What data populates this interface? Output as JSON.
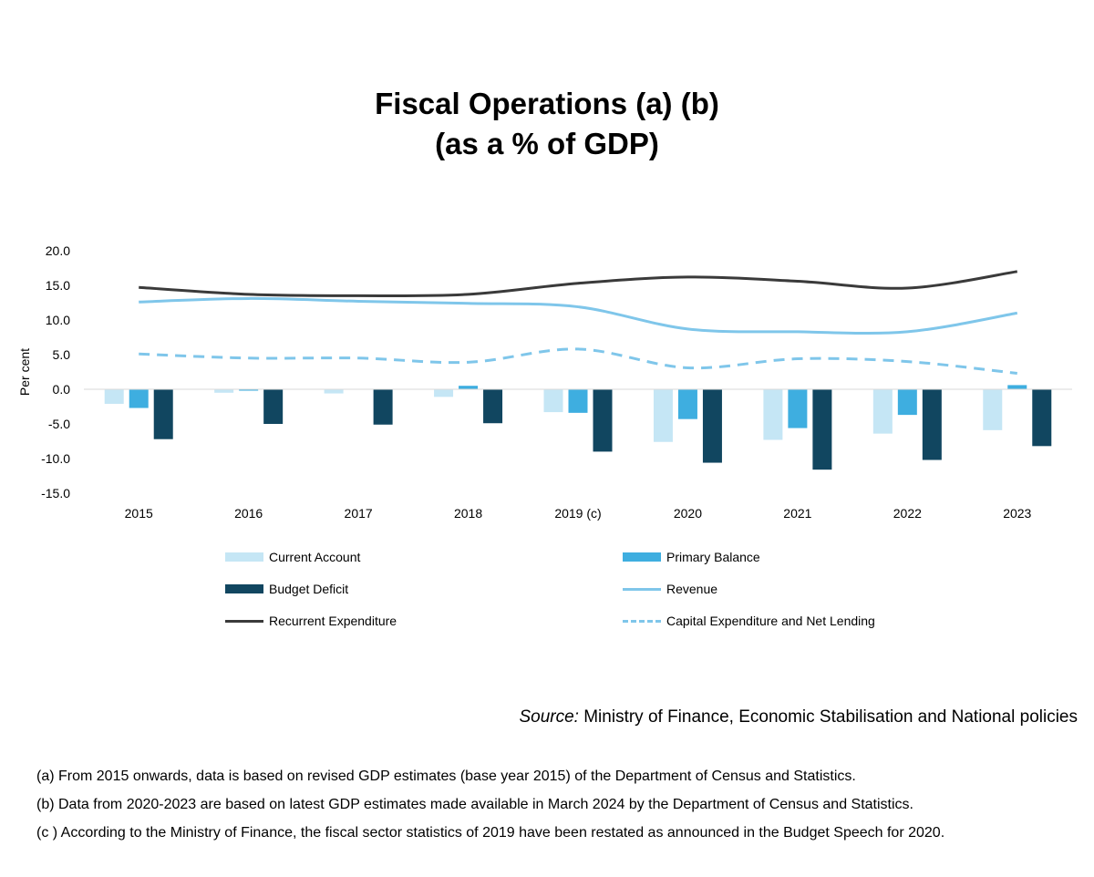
{
  "title_line1": "Fiscal Operations (a) (b)",
  "title_line2": "(as a % of GDP)",
  "chart_data": {
    "type": "bar",
    "categories": [
      "2015",
      "2016",
      "2017",
      "2018",
      "2019 (c)",
      "2020",
      "2021",
      "2022",
      "2023"
    ],
    "ylabel": "Per cent",
    "ylim": [
      -15,
      20
    ],
    "yticks": [
      "20.0",
      "15.0",
      "10.0",
      "5.0",
      "0.0",
      "-5.0",
      "-10.0",
      "-15.0"
    ],
    "grid": false,
    "legend_position": "bottom",
    "bar_series": [
      {
        "name": "Current Account",
        "color": "#c5e6f5",
        "values": [
          -2.1,
          -0.5,
          -0.6,
          -1.1,
          -3.3,
          -7.6,
          -7.3,
          -6.4,
          -5.9
        ]
      },
      {
        "name": "Primary Balance",
        "color": "#3eaee0",
        "values": [
          -2.7,
          -0.2,
          0.0,
          0.5,
          -3.4,
          -4.3,
          -5.6,
          -3.7,
          0.6
        ]
      },
      {
        "name": "Budget Deficit",
        "color": "#114660",
        "values": [
          -7.2,
          -5.0,
          -5.1,
          -4.9,
          -9.0,
          -10.6,
          -11.6,
          -10.2,
          -8.2
        ]
      }
    ],
    "line_series": [
      {
        "name": "Revenue",
        "color": "#7fc6ea",
        "style": "solid",
        "values": [
          12.6,
          13.1,
          12.7,
          12.4,
          11.9,
          8.7,
          8.3,
          8.3,
          11.0
        ]
      },
      {
        "name": "Recurrent Expenditure",
        "color": "#3a3a3a",
        "style": "solid",
        "values": [
          14.7,
          13.7,
          13.5,
          13.7,
          15.3,
          16.2,
          15.6,
          14.6,
          17.0
        ]
      },
      {
        "name": "Capital Expenditure and Net Lending",
        "color": "#7fc6ea",
        "style": "dashed",
        "values": [
          5.1,
          4.5,
          4.5,
          3.9,
          5.8,
          3.1,
          4.4,
          4.0,
          2.3
        ]
      }
    ]
  },
  "legend": {
    "current_account": "Current Account",
    "primary_balance": "Primary Balance",
    "budget_deficit": "Budget Deficit",
    "revenue": "Revenue",
    "recurrent_expenditure": "Recurrent Expenditure",
    "capex": "Capital Expenditure and Net Lending"
  },
  "source_label": "Source:",
  "source_text": " Ministry of Finance, Economic Stabilisation and National policies",
  "notes": [
    "(a) From 2015 onwards, data is based on revised GDP estimates (base year 2015) of the Department of Census and Statistics.",
    "(b) Data from 2020-2023 are based on latest GDP estimates made available in March 2024 by the Department of Census and Statistics.",
    "(c ) According to the Ministry of Finance, the fiscal sector statistics of 2019 have been restated as announced in the Budget Speech for 2020."
  ]
}
